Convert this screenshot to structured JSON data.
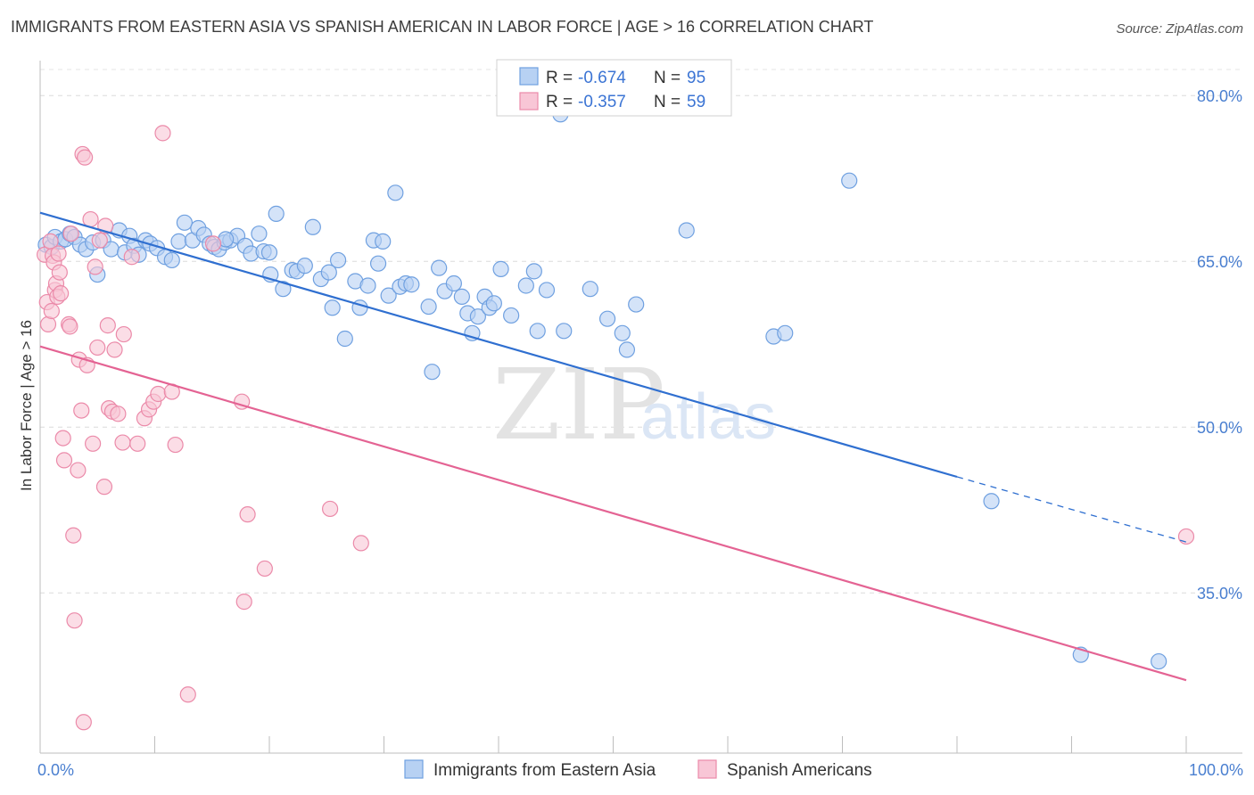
{
  "title": "IMMIGRANTS FROM EASTERN ASIA VS SPANISH AMERICAN IN LABOR FORCE | AGE > 16 CORRELATION CHART",
  "source": "Source: ZipAtlas.com",
  "watermark": {
    "zip": "ZIP",
    "atlas": "atlas"
  },
  "legend_top": [
    {
      "r_label": "R =",
      "r_value": "-0.674",
      "n_label": "N =",
      "n_value": "95",
      "color": "#a9c8f0"
    },
    {
      "r_label": "R =",
      "r_value": "-0.357",
      "n_label": "N =",
      "n_value": "59",
      "color": "#f6b9cd"
    }
  ],
  "chart_data": {
    "type": "scatter",
    "title": "IMMIGRANTS FROM EASTERN ASIA VS SPANISH AMERICAN IN LABOR FORCE | AGE > 16 CORRELATION CHART",
    "xlabel": "",
    "ylabel": "In Labor Force | Age > 16",
    "xlim": [
      0,
      100
    ],
    "ylim": [
      20.5,
      83
    ],
    "x_tick_labels": [
      "0.0%",
      "100.0%"
    ],
    "y_ticks": [
      35,
      50,
      65,
      80
    ],
    "y_tick_labels": [
      "35.0%",
      "50.0%",
      "65.0%",
      "80.0%"
    ],
    "grid": true,
    "legend": "bottom-center",
    "series": [
      {
        "name": "Immigrants from Eastern Asia",
        "color": "#6fa0e0",
        "fill": "#b7d1f3",
        "trend": {
          "x0": 0,
          "y0": 69.4,
          "x1": 80,
          "y1": 45.5,
          "dash_x1": 100,
          "dash_y1": 39.6,
          "color": "#2f6fd0"
        },
        "points": [
          [
            0.5,
            66.5
          ],
          [
            1.0,
            66.3
          ],
          [
            1.3,
            67.2
          ],
          [
            1.8,
            66.8
          ],
          [
            2.2,
            67.0
          ],
          [
            2.6,
            67.5
          ],
          [
            3.0,
            67.2
          ],
          [
            3.5,
            66.5
          ],
          [
            4.0,
            66.1
          ],
          [
            4.6,
            66.7
          ],
          [
            5.0,
            63.8
          ],
          [
            5.5,
            66.9
          ],
          [
            6.2,
            66.1
          ],
          [
            6.9,
            67.8
          ],
          [
            7.4,
            65.8
          ],
          [
            7.8,
            67.3
          ],
          [
            8.2,
            66.4
          ],
          [
            8.6,
            65.6
          ],
          [
            9.2,
            66.9
          ],
          [
            9.6,
            66.6
          ],
          [
            10.2,
            66.2
          ],
          [
            10.9,
            65.4
          ],
          [
            11.5,
            65.1
          ],
          [
            12.1,
            66.8
          ],
          [
            12.6,
            68.5
          ],
          [
            13.3,
            66.9
          ],
          [
            13.8,
            68.0
          ],
          [
            14.3,
            67.4
          ],
          [
            14.8,
            66.6
          ],
          [
            15.2,
            66.3
          ],
          [
            15.6,
            66.1
          ],
          [
            16.1,
            66.7
          ],
          [
            16.6,
            66.9
          ],
          [
            17.2,
            67.3
          ],
          [
            17.9,
            66.4
          ],
          [
            18.4,
            65.7
          ],
          [
            19.1,
            67.5
          ],
          [
            19.5,
            65.9
          ],
          [
            20.1,
            63.8
          ],
          [
            20.6,
            69.3
          ],
          [
            21.2,
            62.5
          ],
          [
            22.0,
            64.2
          ],
          [
            22.4,
            64.1
          ],
          [
            23.1,
            64.6
          ],
          [
            23.8,
            68.1
          ],
          [
            24.5,
            63.4
          ],
          [
            25.2,
            64.0
          ],
          [
            25.5,
            60.8
          ],
          [
            26.0,
            65.1
          ],
          [
            26.6,
            58.0
          ],
          [
            27.5,
            63.2
          ],
          [
            27.9,
            60.8
          ],
          [
            28.6,
            62.8
          ],
          [
            29.1,
            66.9
          ],
          [
            29.5,
            64.8
          ],
          [
            29.9,
            66.8
          ],
          [
            30.4,
            61.9
          ],
          [
            31.0,
            71.2
          ],
          [
            31.4,
            62.7
          ],
          [
            31.9,
            63.0
          ],
          [
            32.4,
            62.9
          ],
          [
            33.9,
            60.9
          ],
          [
            34.2,
            55.0
          ],
          [
            34.8,
            64.4
          ],
          [
            35.3,
            62.3
          ],
          [
            36.1,
            63.0
          ],
          [
            36.8,
            61.8
          ],
          [
            37.3,
            60.3
          ],
          [
            37.7,
            58.5
          ],
          [
            38.2,
            60.0
          ],
          [
            38.8,
            61.8
          ],
          [
            39.2,
            60.8
          ],
          [
            39.6,
            61.2
          ],
          [
            40.2,
            64.3
          ],
          [
            41.1,
            60.1
          ],
          [
            42.4,
            62.8
          ],
          [
            43.1,
            64.1
          ],
          [
            43.4,
            58.7
          ],
          [
            44.2,
            62.4
          ],
          [
            45.4,
            78.3
          ],
          [
            45.7,
            58.7
          ],
          [
            48.0,
            62.5
          ],
          [
            49.5,
            59.8
          ],
          [
            50.8,
            58.5
          ],
          [
            51.2,
            57.0
          ],
          [
            52.0,
            61.1
          ],
          [
            56.4,
            67.8
          ],
          [
            64.0,
            58.2
          ],
          [
            65.0,
            58.5
          ],
          [
            70.6,
            72.3
          ],
          [
            83.0,
            43.3
          ],
          [
            90.8,
            29.4
          ],
          [
            97.6,
            28.8
          ],
          [
            16.2,
            67.0
          ],
          [
            20.0,
            65.8
          ]
        ]
      },
      {
        "name": "Spanish Americans",
        "color": "#eb8aa9",
        "fill": "#f8c6d6",
        "trend": {
          "x0": 0,
          "y0": 57.3,
          "x1": 100,
          "y1": 27.1,
          "color": "#e46393"
        },
        "points": [
          [
            0.4,
            65.6
          ],
          [
            0.6,
            61.3
          ],
          [
            0.7,
            59.3
          ],
          [
            0.9,
            66.8
          ],
          [
            1.0,
            60.5
          ],
          [
            1.1,
            65.5
          ],
          [
            1.2,
            64.9
          ],
          [
            1.3,
            62.4
          ],
          [
            1.4,
            63.0
          ],
          [
            1.5,
            61.8
          ],
          [
            1.6,
            65.7
          ],
          [
            1.7,
            64.0
          ],
          [
            1.8,
            62.1
          ],
          [
            2.0,
            49.0
          ],
          [
            2.1,
            47.0
          ],
          [
            2.5,
            59.3
          ],
          [
            2.6,
            59.1
          ],
          [
            2.7,
            67.5
          ],
          [
            2.9,
            40.2
          ],
          [
            3.0,
            32.5
          ],
          [
            3.3,
            46.1
          ],
          [
            3.4,
            56.1
          ],
          [
            3.6,
            51.5
          ],
          [
            3.7,
            74.7
          ],
          [
            3.8,
            23.3
          ],
          [
            3.9,
            74.4
          ],
          [
            4.1,
            55.6
          ],
          [
            4.4,
            68.8
          ],
          [
            4.6,
            48.5
          ],
          [
            4.8,
            64.5
          ],
          [
            5.0,
            57.2
          ],
          [
            5.2,
            66.9
          ],
          [
            5.7,
            68.2
          ],
          [
            5.9,
            59.2
          ],
          [
            5.6,
            44.6
          ],
          [
            6.0,
            51.7
          ],
          [
            6.3,
            51.4
          ],
          [
            6.5,
            57.0
          ],
          [
            6.8,
            51.2
          ],
          [
            7.2,
            48.6
          ],
          [
            7.3,
            58.4
          ],
          [
            8.0,
            65.4
          ],
          [
            8.5,
            48.5
          ],
          [
            9.1,
            50.8
          ],
          [
            9.5,
            51.6
          ],
          [
            9.9,
            52.3
          ],
          [
            10.3,
            53.0
          ],
          [
            10.7,
            76.6
          ],
          [
            11.5,
            53.2
          ],
          [
            11.8,
            48.4
          ],
          [
            12.9,
            25.8
          ],
          [
            15.1,
            66.6
          ],
          [
            17.6,
            52.3
          ],
          [
            17.8,
            34.2
          ],
          [
            18.1,
            42.1
          ],
          [
            19.6,
            37.2
          ],
          [
            25.3,
            42.6
          ],
          [
            28.0,
            39.5
          ],
          [
            100.0,
            40.1
          ]
        ]
      }
    ]
  }
}
